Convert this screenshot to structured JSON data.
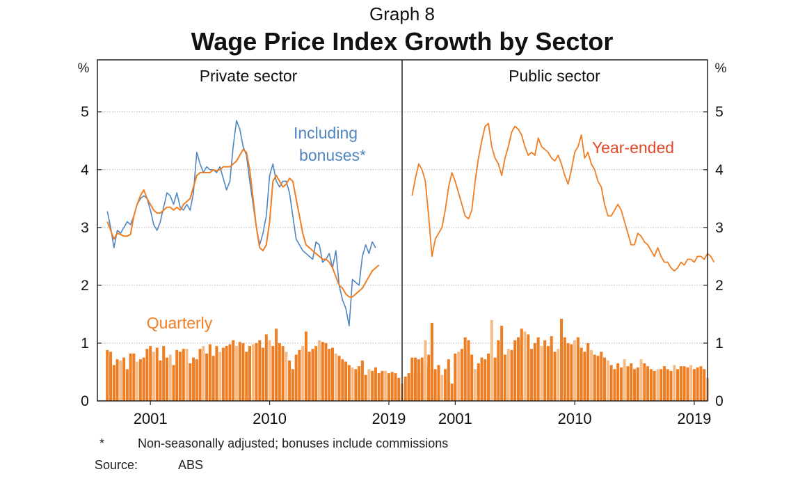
{
  "graph_label": "Graph 8",
  "title": "Wage Price Index Growth by Sector",
  "axis_unit": "%",
  "footnote": {
    "marker": "*",
    "text": "Non-seasonally adjusted; bonuses include commissions"
  },
  "source": {
    "label": "Source:",
    "value": "ABS"
  },
  "colors": {
    "blue": "#4f86c0",
    "orange": "#ef7d22",
    "orange_light": "#f6bc87",
    "red_label": "#e2492a",
    "grid": "#b5b5b5"
  },
  "chart_data": [
    {
      "type": "bar+line",
      "panel_title": "Private sector",
      "ylim": [
        0,
        5.9
      ],
      "yticks": [
        0,
        1,
        2,
        3,
        4,
        5
      ],
      "xlim": [
        1997.0,
        2020.0
      ],
      "xticks": [
        2001,
        2010,
        2019
      ],
      "grid": true,
      "bar_series_name": "Quarterly",
      "bar_x_start": 1997.75,
      "bar_step": 0.25,
      "bars": [
        0.88,
        0.85,
        0.62,
        0.72,
        0.7,
        0.75,
        0.55,
        0.82,
        0.82,
        0.68,
        0.72,
        0.75,
        0.9,
        0.95,
        0.85,
        0.92,
        0.7,
        0.95,
        0.75,
        0.8,
        0.62,
        0.88,
        0.85,
        0.9,
        0.9,
        0.65,
        0.75,
        0.72,
        0.9,
        0.95,
        0.82,
        0.98,
        0.78,
        0.95,
        0.85,
        0.92,
        0.95,
        0.98,
        1.05,
        0.95,
        1.02,
        1.0,
        0.85,
        0.95,
        0.98,
        1.0,
        1.05,
        0.92,
        1.15,
        1.05,
        0.95,
        1.25,
        1.0,
        0.95,
        0.85,
        0.7,
        0.55,
        0.8,
        0.88,
        0.95,
        1.2,
        0.85,
        0.9,
        0.95,
        1.05,
        1.02,
        1.0,
        0.9,
        0.92,
        0.82,
        0.78,
        0.72,
        0.68,
        0.62,
        0.58,
        0.55,
        0.6,
        0.7,
        0.45,
        0.55,
        0.52,
        0.58,
        0.48,
        0.52,
        0.52,
        0.48,
        0.5,
        0.48,
        0.4,
        0.3,
        0.42,
        0.48,
        0.45,
        0.5,
        0.48,
        0.52,
        0.62,
        0.58,
        0.55,
        0.52
      ],
      "lines": [
        {
          "name": "Including bonuses*",
          "x_start": 1997.75,
          "step": 0.25,
          "values": [
            3.28,
            3.0,
            2.65,
            2.95,
            2.9,
            3.0,
            3.1,
            3.05,
            3.2,
            3.4,
            3.5,
            3.55,
            3.5,
            3.3,
            3.05,
            2.95,
            3.1,
            3.35,
            3.6,
            3.55,
            3.4,
            3.6,
            3.35,
            3.3,
            3.4,
            3.3,
            3.6,
            4.3,
            4.1,
            3.95,
            4.05,
            4.0,
            4.0,
            3.95,
            4.05,
            3.85,
            3.65,
            3.8,
            4.4,
            4.85,
            4.7,
            4.4,
            4.25,
            3.8,
            3.4,
            3.0,
            2.7,
            2.9,
            3.2,
            3.9,
            4.1,
            3.8,
            3.7,
            3.8,
            3.8,
            3.6,
            3.2,
            2.8,
            2.7,
            2.6,
            2.55,
            2.5,
            2.45,
            2.75,
            2.7,
            2.4,
            2.45,
            2.55,
            2.3,
            2.6,
            2.0,
            1.75,
            1.6,
            1.3,
            2.1,
            2.05,
            2.0,
            2.5,
            2.7,
            2.55,
            2.75,
            2.65
          ]
        },
        {
          "name": "Year-ended",
          "x_start": 1997.75,
          "step": 0.25,
          "values": [
            3.1,
            2.95,
            2.8,
            2.9,
            2.88,
            2.85,
            2.85,
            2.88,
            3.2,
            3.4,
            3.55,
            3.65,
            3.5,
            3.4,
            3.3,
            3.25,
            3.25,
            3.3,
            3.35,
            3.35,
            3.3,
            3.35,
            3.3,
            3.4,
            3.45,
            3.5,
            3.7,
            3.9,
            3.95,
            3.95,
            3.95,
            3.95,
            4.0,
            3.98,
            4.0,
            4.05,
            4.05,
            4.05,
            4.1,
            4.15,
            4.25,
            4.35,
            4.3,
            4.0,
            3.5,
            3.0,
            2.65,
            2.6,
            2.7,
            3.1,
            3.8,
            3.9,
            3.8,
            3.7,
            3.75,
            3.85,
            3.8,
            3.5,
            3.2,
            2.9,
            2.7,
            2.65,
            2.6,
            2.55,
            2.5,
            2.45,
            2.45,
            2.4,
            2.3,
            2.15,
            2.0,
            1.95,
            1.85,
            1.8,
            1.8,
            1.85,
            1.9,
            1.95,
            2.05,
            2.15,
            2.25,
            2.3,
            2.35
          ]
        }
      ]
    },
    {
      "type": "bar+line",
      "panel_title": "Public sector",
      "ylim": [
        0,
        5.9
      ],
      "yticks": [
        0,
        1,
        2,
        3,
        4,
        5
      ],
      "xlim": [
        1997.0,
        2020.0
      ],
      "xticks": [
        2001,
        2010,
        2019
      ],
      "grid": true,
      "bar_x_start": 1997.75,
      "bar_step": 0.25,
      "bars": [
        0.75,
        0.75,
        0.72,
        0.75,
        1.05,
        0.8,
        1.35,
        0.55,
        0.62,
        0.45,
        0.55,
        0.72,
        0.3,
        0.82,
        0.85,
        0.9,
        1.1,
        1.05,
        0.8,
        0.55,
        0.65,
        0.75,
        0.72,
        0.82,
        1.4,
        0.75,
        1.05,
        1.3,
        0.8,
        0.9,
        0.88,
        1.05,
        1.1,
        1.25,
        1.2,
        1.15,
        0.9,
        1.0,
        1.1,
        0.95,
        1.05,
        0.95,
        1.12,
        0.85,
        0.9,
        1.42,
        1.1,
        1.0,
        0.98,
        1.05,
        1.1,
        0.92,
        0.85,
        1.0,
        0.88,
        0.8,
        0.78,
        0.85,
        0.75,
        0.7,
        0.62,
        0.55,
        0.65,
        0.58,
        0.72,
        0.6,
        0.65,
        0.55,
        0.58,
        0.72,
        0.65,
        0.6,
        0.55,
        0.52,
        0.55,
        0.55,
        0.6,
        0.55,
        0.52,
        0.62,
        0.55,
        0.6,
        0.6,
        0.58,
        0.62,
        0.55,
        0.58,
        0.6,
        0.55,
        0.4
      ],
      "lines": [
        {
          "name": "Year-ended",
          "x_start": 1997.75,
          "step": 0.25,
          "values": [
            3.55,
            3.85,
            4.1,
            4.0,
            3.8,
            3.2,
            2.5,
            2.8,
            2.9,
            3.0,
            3.3,
            3.7,
            3.95,
            3.8,
            3.6,
            3.4,
            3.2,
            3.15,
            3.3,
            3.8,
            4.2,
            4.5,
            4.75,
            4.8,
            4.4,
            4.2,
            4.1,
            3.9,
            4.2,
            4.4,
            4.65,
            4.75,
            4.7,
            4.6,
            4.4,
            4.25,
            4.3,
            4.25,
            4.55,
            4.4,
            4.35,
            4.3,
            4.2,
            4.15,
            4.25,
            4.1,
            3.9,
            3.75,
            4.0,
            4.3,
            4.4,
            4.6,
            4.2,
            4.3,
            4.1,
            4.0,
            3.8,
            3.7,
            3.4,
            3.2,
            3.2,
            3.3,
            3.4,
            3.3,
            3.1,
            2.9,
            2.7,
            2.7,
            2.9,
            2.85,
            2.75,
            2.7,
            2.6,
            2.5,
            2.65,
            2.5,
            2.4,
            2.4,
            2.3,
            2.25,
            2.3,
            2.4,
            2.35,
            2.45,
            2.45,
            2.4,
            2.5,
            2.5,
            2.45,
            2.55,
            2.5,
            2.4
          ]
        }
      ]
    }
  ],
  "annotations": {
    "bonus_label_line1": "Including",
    "bonus_label_line2": "bonuses*",
    "quarterly_label": "Quarterly",
    "year_ended_label": "Year-ended"
  }
}
